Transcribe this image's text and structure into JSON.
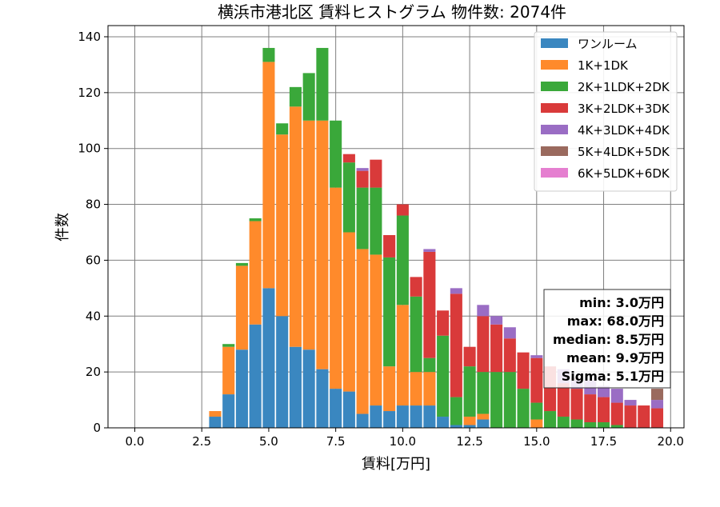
{
  "chart_data": {
    "type": "bar",
    "stacked": true,
    "title": "横浜市港北区 賃料ヒストグラム  物件数: 2074件",
    "xlabel": "賃料[万円]",
    "ylabel": "件数",
    "xlim": [
      -1.0,
      20.5
    ],
    "ylim": [
      0,
      144
    ],
    "grid": true,
    "legend_position": "top-right",
    "x_ticks": [
      0.0,
      2.5,
      5.0,
      7.5,
      10.0,
      12.5,
      15.0,
      17.5,
      20.0
    ],
    "x_tick_labels": [
      "0.0",
      "2.5",
      "5.0",
      "7.5",
      "10.0",
      "12.5",
      "15.0",
      "17.5",
      "20.0"
    ],
    "y_ticks": [
      0,
      20,
      40,
      60,
      80,
      100,
      120,
      140
    ],
    "y_tick_labels": [
      "0",
      "20",
      "40",
      "60",
      "80",
      "100",
      "120",
      "140"
    ],
    "bin_width": 0.5,
    "x": [
      3.0,
      3.5,
      4.0,
      4.5,
      5.0,
      5.5,
      6.0,
      6.5,
      7.0,
      7.5,
      8.0,
      8.5,
      9.0,
      9.5,
      10.0,
      10.5,
      11.0,
      11.5,
      12.0,
      12.5,
      13.0,
      13.5,
      14.0,
      14.5,
      15.0,
      15.5,
      16.0,
      16.5,
      17.0,
      17.5,
      18.0,
      18.5,
      19.0,
      19.5
    ],
    "series": [
      {
        "name": "ワンルーム",
        "color": "#3a87c0",
        "values": [
          4,
          12,
          28,
          37,
          50,
          40,
          29,
          28,
          21,
          14,
          13,
          5,
          8,
          6,
          8,
          8,
          8,
          4,
          1,
          1,
          3,
          0,
          0,
          0,
          0,
          0,
          0,
          0,
          0,
          0,
          0,
          0,
          0,
          0
        ]
      },
      {
        "name": "1K+1DK",
        "color": "#ff8a2b",
        "values": [
          2,
          17,
          30,
          37,
          81,
          65,
          86,
          82,
          89,
          72,
          57,
          59,
          54,
          16,
          36,
          12,
          12,
          0,
          0,
          3,
          2,
          0,
          0,
          0,
          3,
          0,
          0,
          0,
          0,
          0,
          0,
          0,
          0,
          0
        ]
      },
      {
        "name": "2K+1LDK+2DK",
        "color": "#3aa83a",
        "values": [
          0,
          1,
          1,
          1,
          5,
          4,
          7,
          17,
          26,
          24,
          25,
          22,
          24,
          39,
          32,
          27,
          5,
          29,
          10,
          18,
          15,
          20,
          20,
          14,
          6,
          6,
          4,
          3,
          2,
          2,
          1,
          0,
          0,
          0
        ]
      },
      {
        "name": "3K+2LDK+3DK",
        "color": "#d93a3a",
        "values": [
          0,
          0,
          0,
          0,
          0,
          0,
          0,
          0,
          0,
          0,
          3,
          6,
          10,
          8,
          4,
          7,
          38,
          9,
          37,
          7,
          20,
          17,
          12,
          13,
          16,
          16,
          12,
          11,
          10,
          9,
          8,
          8,
          8,
          7
        ]
      },
      {
        "name": "4K+3LDK+4DK",
        "color": "#9a6dc4",
        "values": [
          0,
          0,
          0,
          0,
          0,
          0,
          0,
          0,
          0,
          0,
          0,
          1,
          0,
          0,
          0,
          0,
          1,
          0,
          2,
          0,
          4,
          3,
          4,
          0,
          1,
          0,
          5,
          3,
          5,
          4,
          5,
          2,
          0,
          3
        ]
      },
      {
        "name": "5K+4LDK+5DK",
        "color": "#9a6a5e",
        "values": [
          0,
          0,
          0,
          0,
          0,
          0,
          0,
          0,
          0,
          0,
          0,
          0,
          0,
          0,
          0,
          0,
          0,
          0,
          0,
          0,
          0,
          0,
          0,
          0,
          0,
          0,
          0,
          1,
          0,
          0,
          0,
          0,
          0,
          4
        ]
      },
      {
        "name": "6K+5LDK+6DK",
        "color": "#e57fd0",
        "values": [
          0,
          0,
          0,
          0,
          0,
          0,
          0,
          0,
          0,
          0,
          0,
          0,
          0,
          0,
          0,
          0,
          0,
          0,
          0,
          0,
          0,
          0,
          0,
          0,
          0,
          0,
          0,
          0,
          0,
          0,
          0,
          0,
          0,
          0
        ]
      }
    ],
    "stats_box": {
      "lines": [
        "min: 3.0万円",
        "max: 68.0万円",
        "median: 8.5万円",
        "mean: 9.9万円",
        "Sigma: 5.1万円"
      ]
    }
  }
}
